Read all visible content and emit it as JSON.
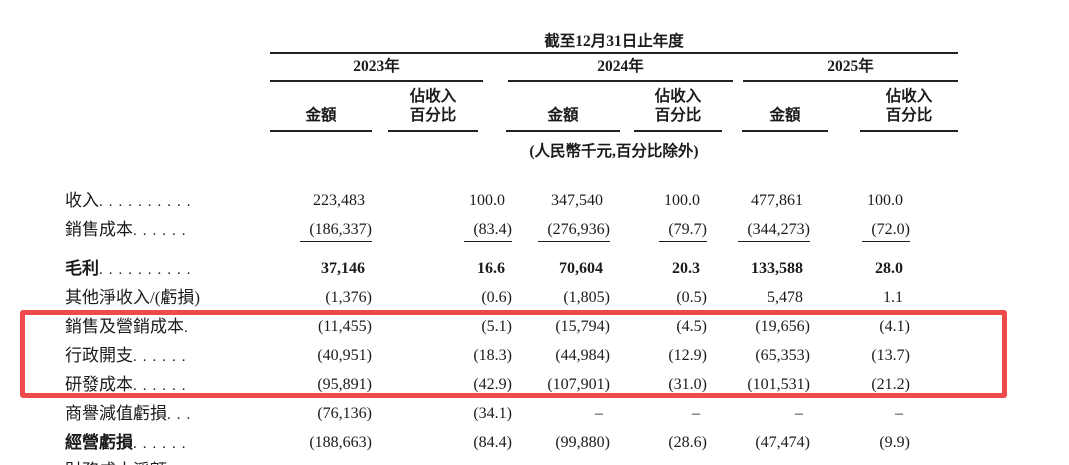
{
  "header": {
    "period_title": "截至12月31日止年度",
    "years": [
      "2023年",
      "2024年",
      "2025年"
    ],
    "col_amount": "金額",
    "col_pct_line1": "佔收入",
    "col_pct_line2": "百分比",
    "unit_note": "(人民幣千元,百分比除外)"
  },
  "table": {
    "rows": [
      {
        "id": "revenue",
        "label": "收入",
        "values": [
          "223,483",
          "100.0",
          "347,540",
          "100.0",
          "477,861",
          "100.0"
        ]
      },
      {
        "id": "cost-of-sales",
        "label": "銷售成本",
        "rule_below": true,
        "values": [
          "(186,337)",
          "(83.4)",
          "(276,936)",
          "(79.7)",
          "(344,273)",
          "(72.0)"
        ]
      },
      {
        "id": "gross-profit",
        "label": "毛利",
        "bold": true,
        "gap_above": true,
        "values": [
          "37,146",
          "16.6",
          "70,604",
          "20.3",
          "133,588",
          "28.0"
        ]
      },
      {
        "id": "other-net-income-loss",
        "label": "其他淨收入/(虧損)",
        "values": [
          "(1,376)",
          "(0.6)",
          "(1,805)",
          "(0.5)",
          "5,478",
          "1.1"
        ]
      },
      {
        "id": "selling-marketing-costs",
        "label": "銷售及營銷成本",
        "highlighted": true,
        "values": [
          "(11,455)",
          "(5.1)",
          "(15,794)",
          "(4.5)",
          "(19,656)",
          "(4.1)"
        ]
      },
      {
        "id": "admin-expenses",
        "label": "行政開支",
        "highlighted": true,
        "values": [
          "(40,951)",
          "(18.3)",
          "(44,984)",
          "(12.9)",
          "(65,353)",
          "(13.7)"
        ]
      },
      {
        "id": "rnd-costs",
        "label": "研發成本",
        "highlighted": true,
        "values": [
          "(95,891)",
          "(42.9)",
          "(107,901)",
          "(31.0)",
          "(101,531)",
          "(21.2)"
        ]
      },
      {
        "id": "goodwill-impairment-loss",
        "label": "商譽減值虧損",
        "values": [
          "(76,136)",
          "(34.1)",
          "–",
          "–",
          "–",
          "–"
        ]
      },
      {
        "id": "operating-loss",
        "label": "經營虧損",
        "label_bold": true,
        "values": [
          "(188,663)",
          "(84.4)",
          "(99,880)",
          "(28.6)",
          "(47,474)",
          "(9.9)"
        ]
      }
    ]
  },
  "annotation": {
    "highlight_box_color": "#ee4a4c",
    "highlighted_rows": [
      "銷售及營銷成本",
      "行政開支",
      "研發成本"
    ]
  },
  "partial_row": {
    "label": "財務成本淨額"
  }
}
